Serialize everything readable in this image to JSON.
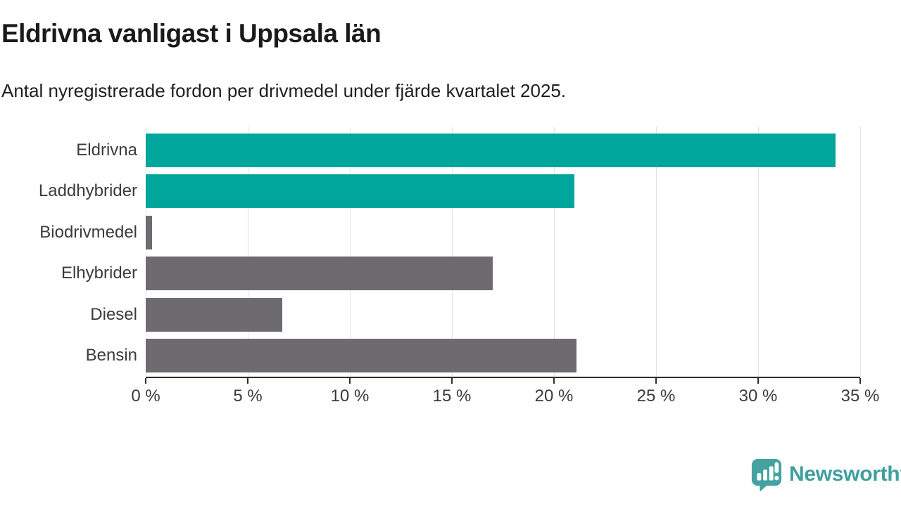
{
  "header": {
    "title": "Eldrivna vanligast i Uppsala län",
    "subtitle": "Antal nyregistrerade fordon per drivmedel under fjärde kvartalet 2025."
  },
  "chart_data": {
    "type": "bar",
    "orientation": "horizontal",
    "title": "Eldrivna vanligast i Uppsala län",
    "subtitle": "Antal nyregistrerade fordon per drivmedel under fjärde kvartalet 2025.",
    "categories": [
      "Eldrivna",
      "Laddhybrider",
      "Biodrivmedel",
      "Elhybrider",
      "Diesel",
      "Bensin"
    ],
    "values": [
      33.8,
      21.0,
      0.3,
      17.0,
      6.7,
      21.1
    ],
    "unit": "%",
    "bar_colors": [
      "#00a69b",
      "#00a69b",
      "#6d6b70",
      "#6d6b70",
      "#6d6b70",
      "#6d6b70"
    ],
    "xlabel": "",
    "ylabel": "",
    "xlim": [
      0,
      35
    ],
    "x_ticks": [
      0,
      5,
      10,
      15,
      20,
      25,
      30,
      35
    ],
    "x_tick_labels": [
      "0 %",
      "5 %",
      "10 %",
      "15 %",
      "20 %",
      "25 %",
      "30 %",
      "35 %"
    ],
    "grid": true,
    "legend": false
  },
  "colors": {
    "accent_teal": "#00a69b",
    "bar_gray": "#6d6b70",
    "gridline": "#e3e3e3",
    "axis": "#2e2e2e",
    "text_dark": "#1a1a1a",
    "text_label": "#3b3b3b",
    "logo_teal": "#3f9f9e"
  },
  "footer": {
    "brand": "Newsworthy"
  }
}
